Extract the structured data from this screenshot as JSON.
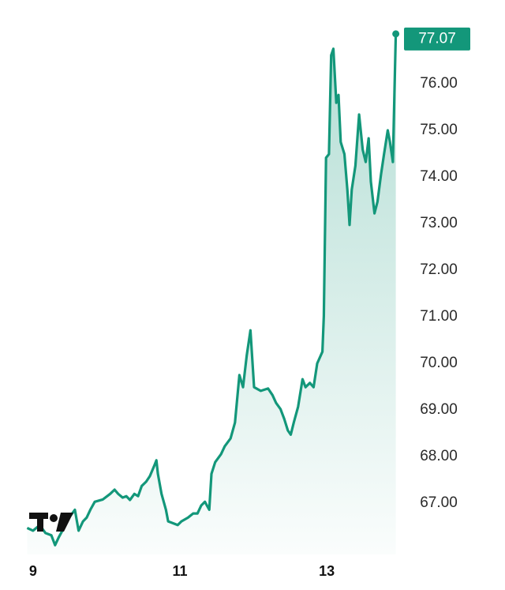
{
  "chart_data": {
    "type": "area",
    "x": [
      8.92,
      9.0,
      9.09,
      9.17,
      9.25,
      9.3,
      9.35,
      9.41,
      9.49,
      9.57,
      9.62,
      9.68,
      9.73,
      9.78,
      9.84,
      9.95,
      10.05,
      10.11,
      10.16,
      10.22,
      10.27,
      10.32,
      10.38,
      10.43,
      10.48,
      10.54,
      10.59,
      10.65,
      10.68,
      10.7,
      10.75,
      10.81,
      10.84,
      10.89,
      10.97,
      11.02,
      11.11,
      11.18,
      11.24,
      11.29,
      11.34,
      11.4,
      11.43,
      11.48,
      11.56,
      11.61,
      11.69,
      11.75,
      11.81,
      11.86,
      11.91,
      11.96,
      12.01,
      12.1,
      12.2,
      12.26,
      12.31,
      12.37,
      12.42,
      12.47,
      12.51,
      12.55,
      12.61,
      12.67,
      12.71,
      12.77,
      12.82,
      12.87,
      12.94,
      12.96,
      12.99,
      13.03,
      13.06,
      13.09,
      13.13,
      13.16,
      13.19,
      13.24,
      13.28,
      13.31,
      13.34,
      13.39,
      13.44,
      13.49,
      13.53,
      13.57,
      13.6,
      13.65,
      13.69,
      13.74,
      13.78,
      13.83,
      13.86,
      13.9,
      13.94
    ],
    "values": [
      66.47,
      66.41,
      66.53,
      66.36,
      66.31,
      66.1,
      66.27,
      66.44,
      66.69,
      66.86,
      66.41,
      66.61,
      66.69,
      66.86,
      67.03,
      67.08,
      67.2,
      67.29,
      67.2,
      67.12,
      67.15,
      67.07,
      67.2,
      67.15,
      67.37,
      67.46,
      67.58,
      67.8,
      67.92,
      67.63,
      67.2,
      66.86,
      66.61,
      66.58,
      66.53,
      66.61,
      66.69,
      66.78,
      66.78,
      66.95,
      67.03,
      66.86,
      67.63,
      67.88,
      68.05,
      68.22,
      68.39,
      68.73,
      69.75,
      69.49,
      70.17,
      70.71,
      69.49,
      69.41,
      69.46,
      69.32,
      69.15,
      69.02,
      68.81,
      68.56,
      68.47,
      68.73,
      69.07,
      69.66,
      69.49,
      69.58,
      69.49,
      70.0,
      70.25,
      71.02,
      74.41,
      74.49,
      76.61,
      76.75,
      75.59,
      75.76,
      74.75,
      74.49,
      73.73,
      72.97,
      73.73,
      74.24,
      75.34,
      74.58,
      74.32,
      74.83,
      73.9,
      73.22,
      73.47,
      74.07,
      74.49,
      75.0,
      74.75,
      74.32,
      77.07
    ],
    "color": "#13977a",
    "xlim": [
      8.55,
      14.03
    ],
    "xticks": [
      9,
      11,
      13
    ],
    "ylim": [
      65.9,
      77.3
    ],
    "yticks": [
      {
        "value": 67,
        "label": "67.00"
      },
      {
        "value": 68,
        "label": "68.00"
      },
      {
        "value": 69,
        "label": "69.00"
      },
      {
        "value": 70,
        "label": "70.00"
      },
      {
        "value": 71,
        "label": "71.00"
      },
      {
        "value": 72,
        "label": "72.00"
      },
      {
        "value": 73,
        "label": "73.00"
      },
      {
        "value": 74,
        "label": "74.00"
      },
      {
        "value": 75,
        "label": "75.00"
      },
      {
        "value": 76,
        "label": "76.00"
      }
    ]
  }
}
